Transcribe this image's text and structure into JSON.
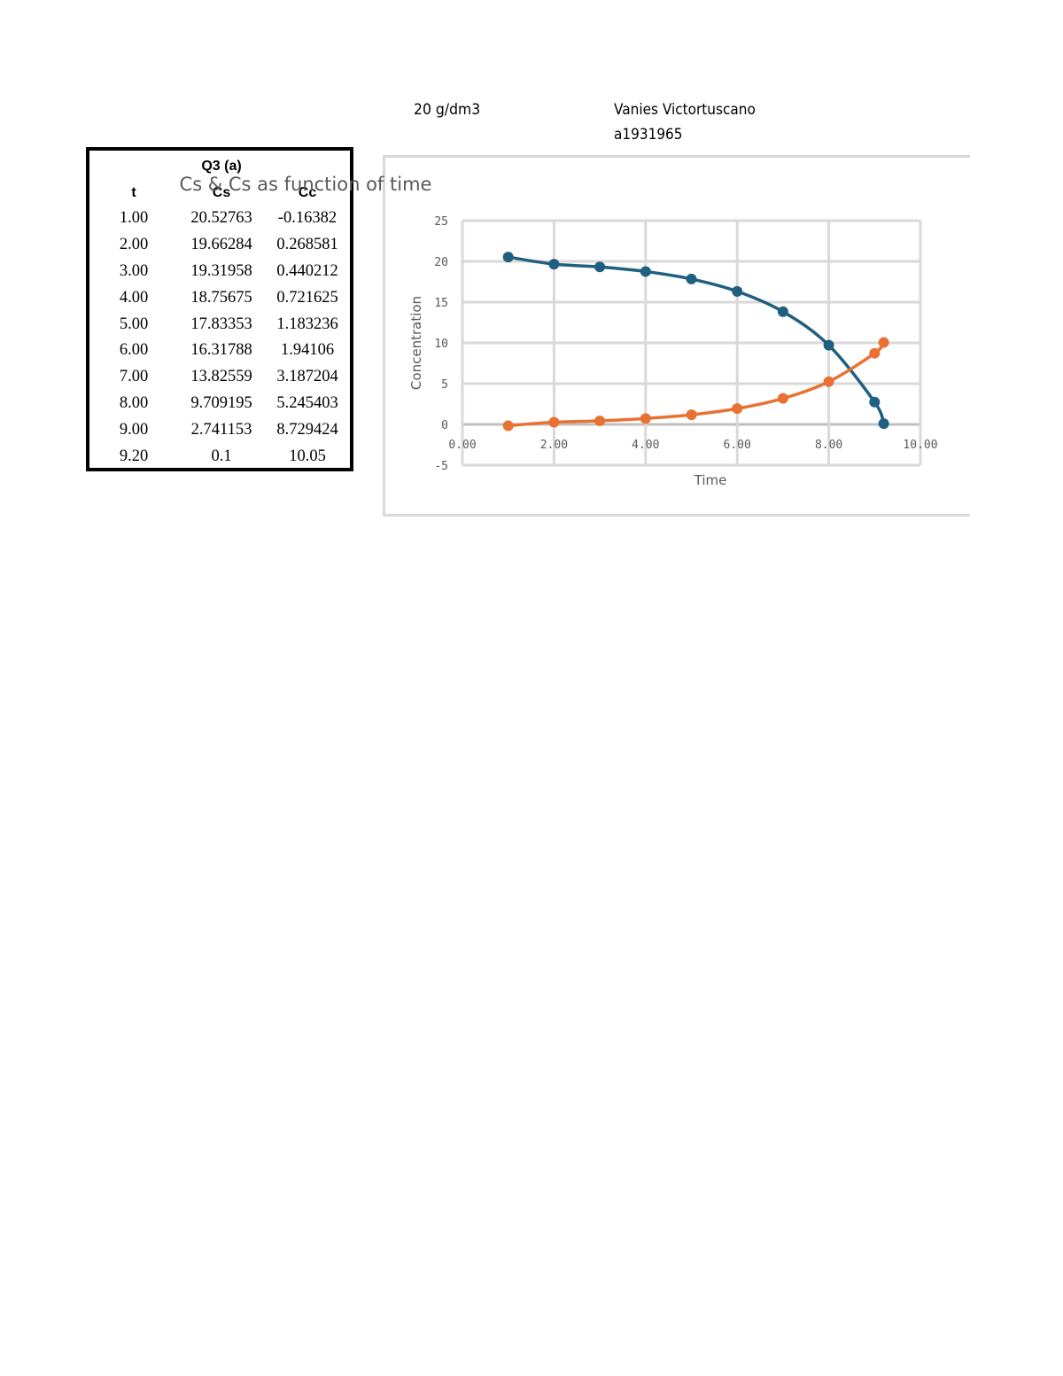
{
  "header": {
    "unit_label": "20  g/dm3",
    "author_name": "Vanies Victortuscano",
    "author_id": "a1931965"
  },
  "table": {
    "title": "Q3 (a)",
    "columns": [
      "t",
      "Cs",
      "Cc"
    ],
    "rows": [
      [
        "1.00",
        "20.52763",
        "-0.16382"
      ],
      [
        "2.00",
        "19.66284",
        "0.268581"
      ],
      [
        "3.00",
        "19.31958",
        "0.440212"
      ],
      [
        "4.00",
        "18.75675",
        "0.721625"
      ],
      [
        "5.00",
        "17.83353",
        "1.183236"
      ],
      [
        "6.00",
        "16.31788",
        "1.94106"
      ],
      [
        "7.00",
        "13.82559",
        "3.187204"
      ],
      [
        "8.00",
        "9.709195",
        "5.245403"
      ],
      [
        "9.00",
        "2.741153",
        "8.729424"
      ],
      [
        "9.20",
        "0.1",
        "10.05"
      ]
    ]
  },
  "chart_data": {
    "type": "scatter",
    "title": "Cs & Cs as function of time",
    "xlabel": "Time",
    "ylabel": "Concentration",
    "xlim": [
      0,
      10
    ],
    "ylim": [
      -5,
      25
    ],
    "x_ticks": [
      "0.00",
      "2.00",
      "4.00",
      "6.00",
      "8.00",
      "10.00"
    ],
    "y_ticks": [
      "-5",
      "0",
      "5",
      "10",
      "15",
      "20",
      "25"
    ],
    "grid": true,
    "legend": "none",
    "x": [
      1.0,
      2.0,
      3.0,
      4.0,
      5.0,
      6.0,
      7.0,
      8.0,
      9.0,
      9.2
    ],
    "series": [
      {
        "name": "Cs",
        "color": "#1f5f7f",
        "values": [
          20.52763,
          19.66284,
          19.31958,
          18.75675,
          17.83353,
          16.31788,
          13.82559,
          9.709195,
          2.741153,
          0.1
        ]
      },
      {
        "name": "Cc",
        "color": "#e97132",
        "values": [
          -0.16382,
          0.268581,
          0.440212,
          0.721625,
          1.183236,
          1.94106,
          3.187204,
          5.245403,
          8.729424,
          10.05
        ]
      }
    ]
  }
}
